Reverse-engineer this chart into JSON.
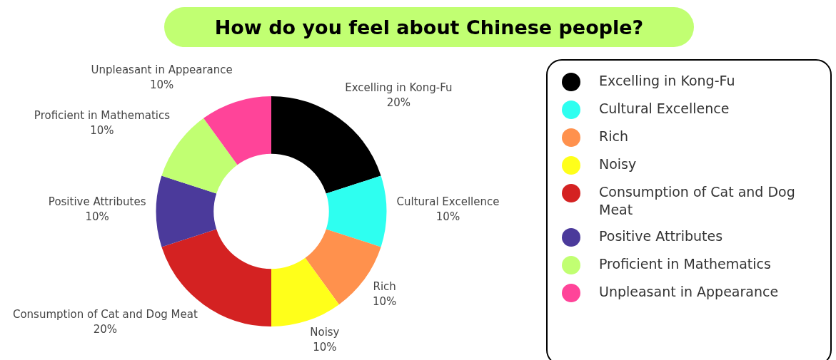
{
  "chart_data": {
    "type": "donut",
    "title": "How do you feel about Chinese people?",
    "categories": [
      "Excelling in Kong-Fu",
      "Cultural Excellence",
      "Rich",
      "Noisy",
      "Consumption of Cat and Dog Meat",
      "Positive Attributes",
      "Proficient in Mathematics",
      "Unpleasant in Appearance"
    ],
    "values": [
      20,
      10,
      10,
      10,
      20,
      10,
      10,
      10
    ],
    "value_labels": [
      "20%",
      "10%",
      "10%",
      "10%",
      "20%",
      "10%",
      "10%",
      "10%"
    ],
    "colors": [
      "#000000",
      "#2efff0",
      "#ff914d",
      "#ffff1a",
      "#d42222",
      "#4b3a9b",
      "#c1ff72",
      "#ff4499"
    ],
    "legend": "right"
  }
}
